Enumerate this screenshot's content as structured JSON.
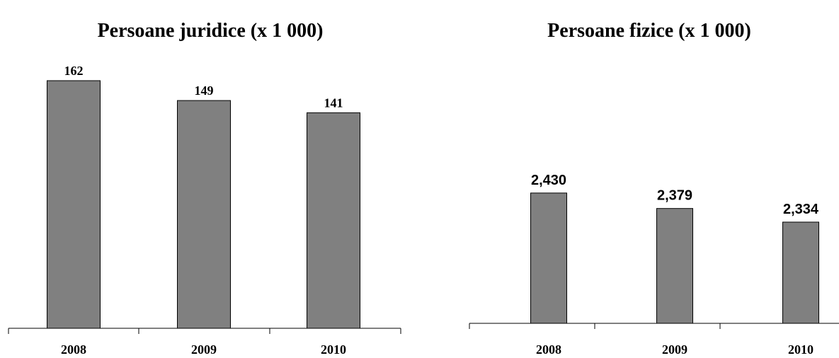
{
  "chart_data": [
    {
      "type": "bar",
      "title": "Persoane juridice (x 1 000)",
      "categories": [
        "2008",
        "2009",
        "2010"
      ],
      "values": [
        162,
        149,
        141
      ],
      "value_labels": [
        "162",
        "149",
        "141"
      ],
      "ylim": [
        0,
        162
      ],
      "xlabel": "",
      "ylabel": "",
      "grid": false,
      "bar_color": "#808080"
    },
    {
      "type": "bar",
      "title": "Persoane fizice (x 1 000)",
      "categories": [
        "2008",
        "2009",
        "2010"
      ],
      "values": [
        2430,
        2379,
        2334
      ],
      "value_labels": [
        "2,430",
        "2,379",
        "2,334"
      ],
      "ylim": [
        2000,
        2600
      ],
      "xlabel": "",
      "ylabel": "",
      "grid": false,
      "bar_color": "#808080"
    }
  ]
}
